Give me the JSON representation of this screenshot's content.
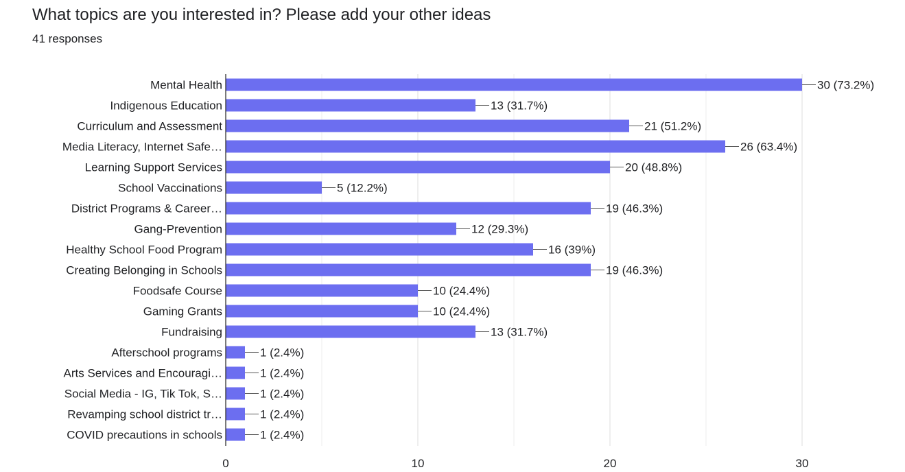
{
  "header": {
    "title": "What topics are you interested in? Please add your other ideas",
    "responses": "41 responses"
  },
  "colors": {
    "bar": "#6c6ef0",
    "axis": "#333333",
    "grid": "#e6e6e6",
    "text": "#202124"
  },
  "chart_data": {
    "type": "bar",
    "orientation": "horizontal",
    "categories": [
      "Mental Health",
      "Indigenous Education",
      "Curriculum and Assessment",
      "Media Literacy, Internet Safe…",
      "Learning Support Services",
      "School Vaccinations",
      "District Programs & Career…",
      "Gang-Prevention",
      "Healthy School Food Program",
      "Creating Belonging in Schools",
      "Foodsafe Course",
      "Gaming Grants",
      "Fundraising",
      "Afterschool programs",
      "Arts Services and Encouragi…",
      "Social Media - IG, Tik Tok, S…",
      "Revamping school district tr…",
      "COVID precautions in schools"
    ],
    "values": [
      30,
      13,
      21,
      26,
      20,
      5,
      19,
      12,
      16,
      19,
      10,
      10,
      13,
      1,
      1,
      1,
      1,
      1
    ],
    "data_labels": [
      "30 (73.2%)",
      "13 (31.7%)",
      "21 (51.2%)",
      "26 (63.4%)",
      "20 (48.8%)",
      "5 (12.2%)",
      "19 (46.3%)",
      "12 (29.3%)",
      "16 (39%)",
      "19 (46.3%)",
      "10 (24.4%)",
      "10 (24.4%)",
      "13 (31.7%)",
      "1 (2.4%)",
      "1 (2.4%)",
      "1 (2.4%)",
      "1 (2.4%)",
      "1 (2.4%)"
    ],
    "xlim": [
      0,
      30
    ],
    "xticks": [
      0,
      10,
      20,
      30
    ],
    "grid": true,
    "legend": "none"
  }
}
